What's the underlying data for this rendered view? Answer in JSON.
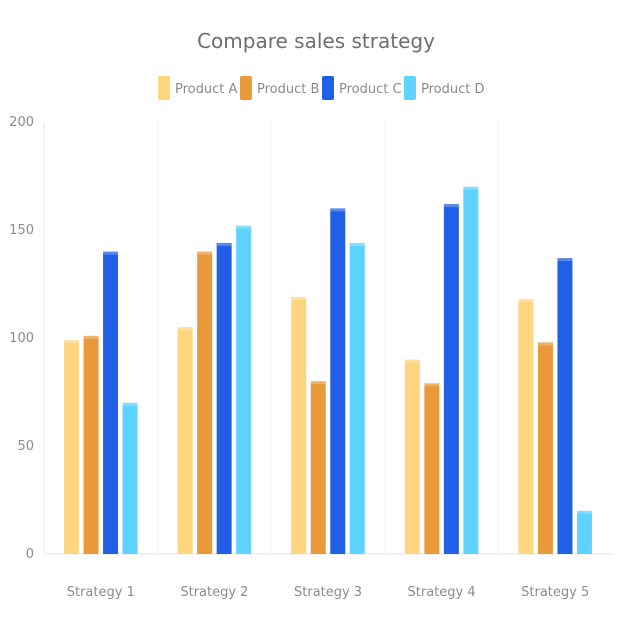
{
  "chart_data": {
    "type": "bar",
    "title": "Compare sales strategy",
    "categories": [
      "Strategy 1",
      "Strategy 2",
      "Strategy 3",
      "Strategy 4",
      "Strategy 5"
    ],
    "series": [
      {
        "name": "Product A",
        "color": "#fdd67f",
        "values": [
          99,
          105,
          119,
          90,
          118
        ]
      },
      {
        "name": "Product B",
        "color": "#e9993a",
        "values": [
          101,
          140,
          80,
          79,
          98
        ]
      },
      {
        "name": "Product C",
        "color": "#2160e6",
        "values": [
          140,
          144,
          160,
          162,
          137
        ]
      },
      {
        "name": "Product D",
        "color": "#5ed3ff",
        "values": [
          70,
          152,
          144,
          170,
          20
        ]
      }
    ],
    "ylim": [
      0,
      200
    ],
    "yticks": [
      0,
      50,
      100,
      150,
      200
    ],
    "legend_position": "top-center",
    "grid": false
  }
}
